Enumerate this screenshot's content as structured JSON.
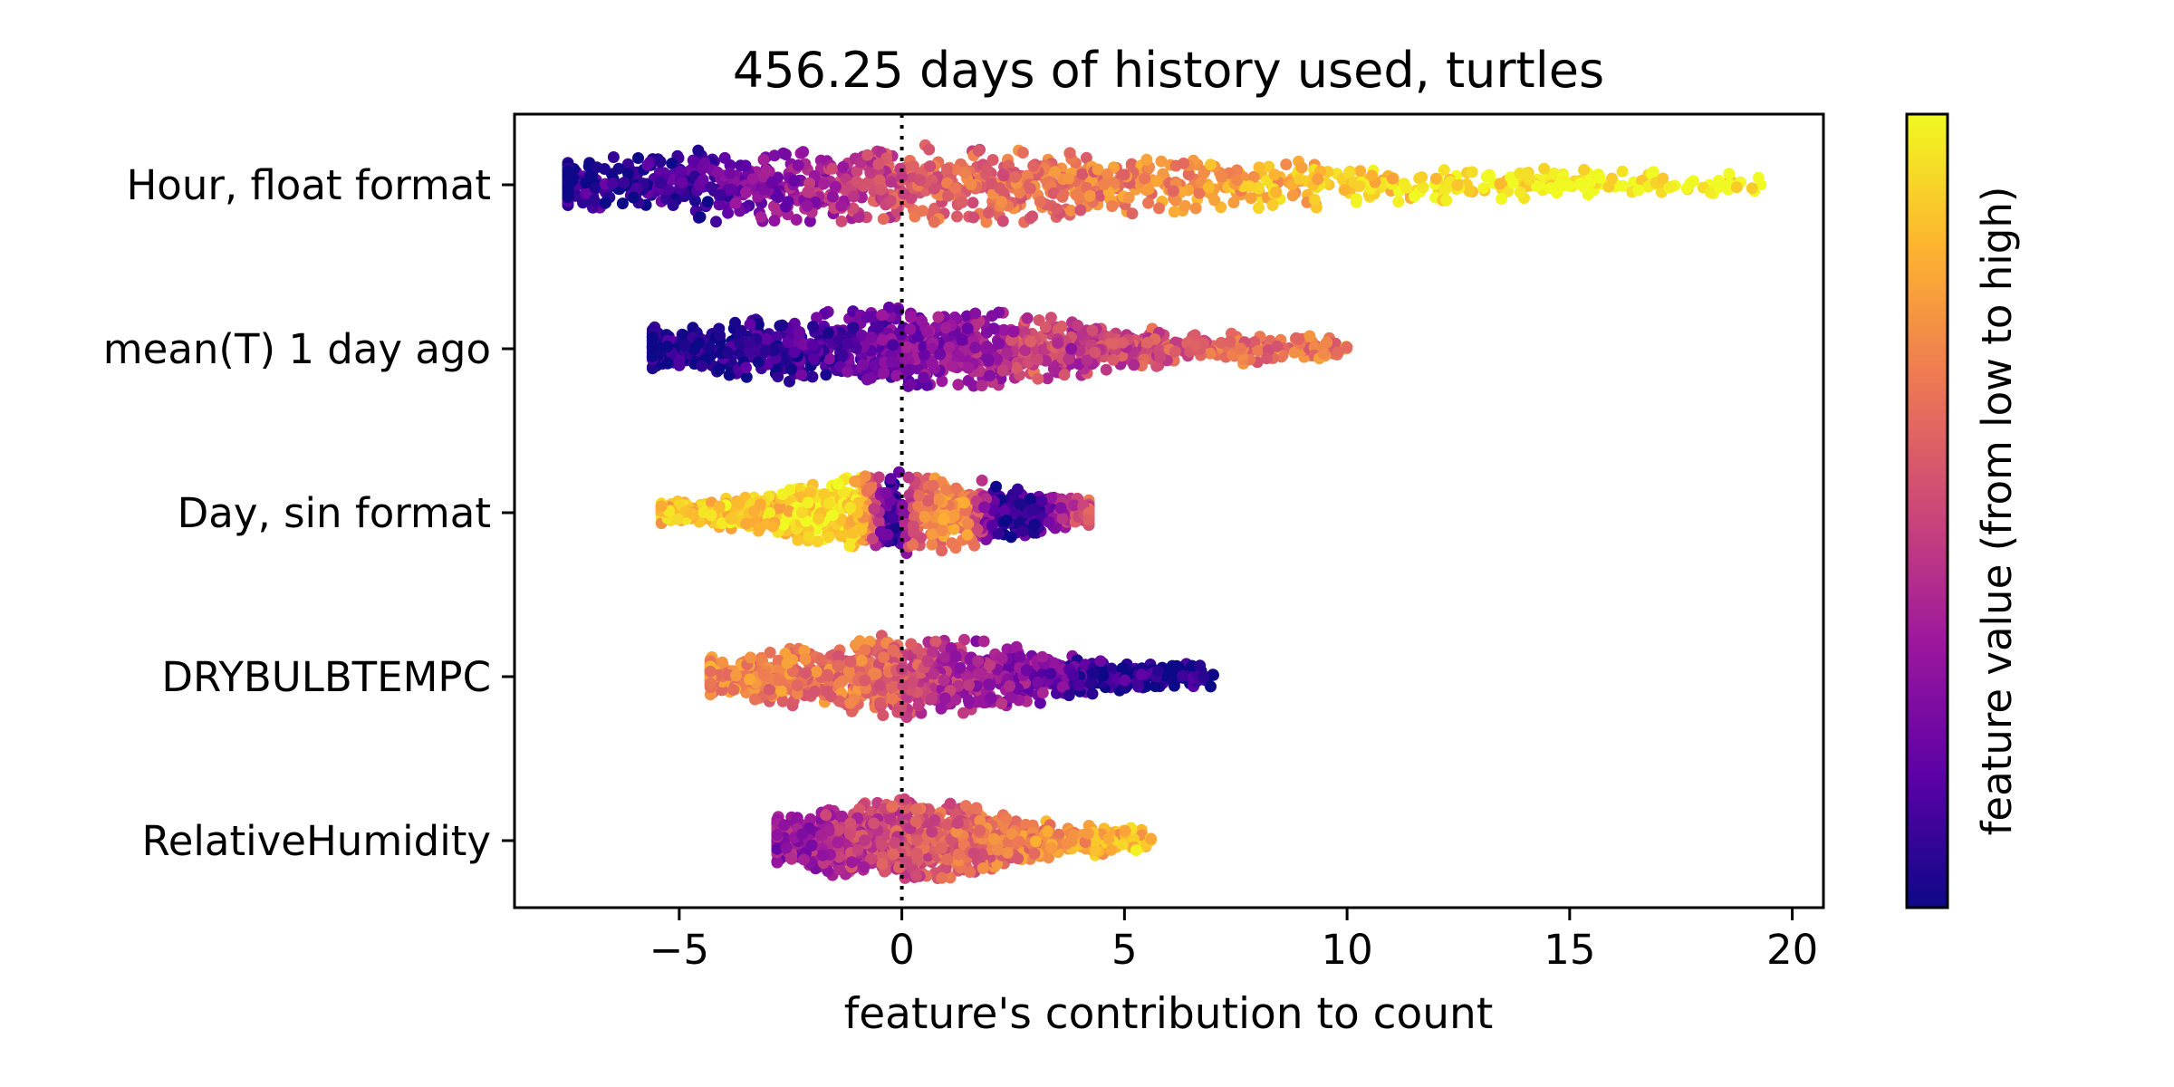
{
  "chart_data": {
    "type": "scatter",
    "title": "456.25 days of history used, turtles",
    "xlabel": "feature's contribution to count",
    "ylabel": "",
    "xlim": [
      -8.7,
      20.7
    ],
    "xticks": [
      {
        "value": -5,
        "label": "−5"
      },
      {
        "value": 0,
        "label": "0"
      },
      {
        "value": 5,
        "label": "5"
      },
      {
        "value": 10,
        "label": "10"
      },
      {
        "value": 15,
        "label": "15"
      },
      {
        "value": 20,
        "label": "20"
      }
    ],
    "reference_line": {
      "x": 0,
      "style": "dotted"
    },
    "grid": false,
    "colorbar": {
      "label": "feature value (from low to high)",
      "colormap": "plasma",
      "colors": [
        "#0d0887",
        "#5c01a6",
        "#9c179e",
        "#cc4778",
        "#ed7953",
        "#fdb42f",
        "#f0f921"
      ]
    },
    "categories": [
      "Hour, float format",
      "mean(T) 1 day ago",
      "Day, sin format",
      "DRYBULBTEMPC",
      "RelativeHumidity"
    ],
    "series": [
      {
        "feature": "Hour, float format",
        "x_range": [
          -7.5,
          19.3
        ],
        "color_trend": "low feature values negative, high feature values positive",
        "points": [
          [
            -7.4,
            0.05
          ],
          [
            -6.8,
            0.1
          ],
          [
            -5.9,
            0.02
          ],
          [
            -5.4,
            0.15
          ],
          [
            -4.6,
            0.08
          ],
          [
            -3.9,
            0.2
          ],
          [
            -3.2,
            0.25
          ],
          [
            -2.5,
            0.3
          ],
          [
            -1.8,
            0.38
          ],
          [
            -1.1,
            0.45
          ],
          [
            -0.6,
            0.5
          ],
          [
            0.2,
            0.55
          ],
          [
            1.0,
            0.6
          ],
          [
            2.1,
            0.62
          ],
          [
            3.4,
            0.65
          ],
          [
            4.7,
            0.68
          ],
          [
            5.9,
            0.72
          ],
          [
            7.2,
            0.78
          ],
          [
            8.3,
            0.82
          ],
          [
            9.6,
            0.86
          ],
          [
            10.8,
            0.9
          ],
          [
            12.1,
            0.93
          ],
          [
            13.4,
            0.96
          ],
          [
            14.6,
            0.98
          ],
          [
            15.8,
            0.99
          ],
          [
            16.9,
            0.99
          ],
          [
            18.5,
            1.0
          ],
          [
            19.3,
            1.0
          ]
        ]
      },
      {
        "feature": "mean(T) 1 day ago",
        "x_range": [
          -5.6,
          10.0
        ],
        "color_trend": "mostly low feature values, higher values toward positive contribution",
        "points": [
          [
            -5.6,
            0.02
          ],
          [
            -4.9,
            0.05
          ],
          [
            -4.1,
            0.06
          ],
          [
            -3.3,
            0.08
          ],
          [
            -2.6,
            0.1
          ],
          [
            -1.8,
            0.14
          ],
          [
            -1.0,
            0.18
          ],
          [
            -0.3,
            0.22
          ],
          [
            0.5,
            0.28
          ],
          [
            1.4,
            0.32
          ],
          [
            2.3,
            0.38
          ],
          [
            3.0,
            0.55
          ],
          [
            3.8,
            0.42
          ],
          [
            4.6,
            0.48
          ],
          [
            5.5,
            0.52
          ],
          [
            6.3,
            0.56
          ],
          [
            7.1,
            0.6
          ],
          [
            7.9,
            0.62
          ],
          [
            8.7,
            0.64
          ],
          [
            9.4,
            0.66
          ],
          [
            10.0,
            0.7
          ]
        ]
      },
      {
        "feature": "Day, sin format",
        "x_range": [
          -5.4,
          4.2
        ],
        "color_trend": "high feature values negative, low feature values positive",
        "points": [
          [
            -5.3,
            0.85
          ],
          [
            -4.6,
            0.88
          ],
          [
            -3.8,
            0.9
          ],
          [
            -3.0,
            0.88
          ],
          [
            -2.3,
            0.92
          ],
          [
            -1.6,
            0.98
          ],
          [
            -0.9,
            0.85
          ],
          [
            -0.2,
            0.02
          ],
          [
            0.3,
            0.6
          ],
          [
            0.9,
            0.7
          ],
          [
            1.5,
            0.72
          ],
          [
            2.1,
            0.1
          ],
          [
            2.7,
            0.08
          ],
          [
            3.2,
            0.15
          ],
          [
            3.8,
            0.5
          ],
          [
            4.2,
            0.55
          ]
        ]
      },
      {
        "feature": "DRYBULBTEMPC",
        "x_range": [
          -4.3,
          7.0
        ],
        "color_trend": "high feature values negative, low feature values positive",
        "points": [
          [
            -4.2,
            0.72
          ],
          [
            -3.5,
            0.7
          ],
          [
            -2.8,
            0.68
          ],
          [
            -2.0,
            0.66
          ],
          [
            -1.3,
            0.65
          ],
          [
            -0.6,
            0.62
          ],
          [
            0.1,
            0.55
          ],
          [
            0.8,
            0.45
          ],
          [
            1.6,
            0.38
          ],
          [
            2.4,
            0.32
          ],
          [
            3.1,
            0.28
          ],
          [
            3.9,
            0.15
          ],
          [
            4.6,
            0.08
          ],
          [
            5.4,
            0.06
          ],
          [
            6.0,
            0.04
          ],
          [
            6.9,
            0.03
          ]
        ]
      },
      {
        "feature": "RelativeHumidity",
        "x_range": [
          -2.8,
          5.6
        ],
        "color_trend": "low feature values negative, high feature values positive",
        "points": [
          [
            -2.8,
            0.3
          ],
          [
            -2.2,
            0.35
          ],
          [
            -1.6,
            0.4
          ],
          [
            -1.0,
            0.45
          ],
          [
            -0.4,
            0.5
          ],
          [
            0.3,
            0.55
          ],
          [
            1.0,
            0.6
          ],
          [
            1.7,
            0.62
          ],
          [
            2.4,
            0.65
          ],
          [
            3.1,
            0.72
          ],
          [
            3.8,
            0.75
          ],
          [
            4.5,
            0.8
          ],
          [
            5.2,
            0.85
          ],
          [
            5.6,
            0.88
          ]
        ]
      }
    ]
  }
}
